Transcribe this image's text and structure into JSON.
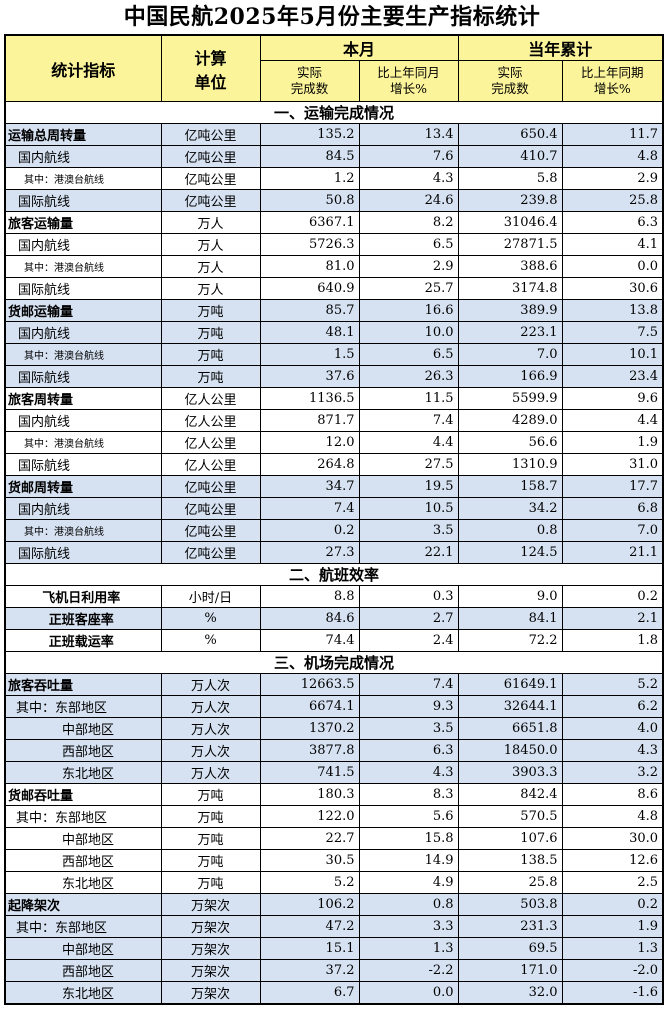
{
  "title": "中国民航2025年5月份主要生产指标统计",
  "header": {
    "indicator": "统计指标",
    "unit_line1": "计算",
    "unit_line2": "单位",
    "this_month": "本月",
    "ytd": "当年累计",
    "actual_line1": "实际",
    "actual_line2": "完成数",
    "growth_line1": "比上年同月",
    "growth_line2": "增长%",
    "actual_ytd_line1": "实际",
    "actual_ytd_line2": "完成数",
    "growth_ytd_line1": "比上年同期",
    "growth_ytd_line2": "增长%"
  },
  "sections": [
    {
      "title": "一、运输完成情况",
      "rows": [
        {
          "name": "运输总周转量",
          "level": "lv0",
          "unit": "亿吨公里",
          "m": "135.2",
          "mg": "13.4",
          "y": "650.4",
          "yg": "11.7",
          "shade": true
        },
        {
          "name": "国内航线",
          "level": "lv1",
          "unit": "亿吨公里",
          "m": "84.5",
          "mg": "7.6",
          "y": "410.7",
          "yg": "4.8",
          "shade": true
        },
        {
          "name": "其中：港澳台航线",
          "level": "lv2",
          "unit": "亿吨公里",
          "m": "1.2",
          "mg": "4.3",
          "y": "5.8",
          "yg": "2.9",
          "shade": false
        },
        {
          "name": "国际航线",
          "level": "lv1",
          "unit": "亿吨公里",
          "m": "50.8",
          "mg": "24.6",
          "y": "239.8",
          "yg": "25.8",
          "shade": true
        },
        {
          "name": "旅客运输量",
          "level": "lv0",
          "unit": "万人",
          "m": "6367.1",
          "mg": "8.2",
          "y": "31046.4",
          "yg": "6.3",
          "shade": false
        },
        {
          "name": "国内航线",
          "level": "lv1",
          "unit": "万人",
          "m": "5726.3",
          "mg": "6.5",
          "y": "27871.5",
          "yg": "4.1",
          "shade": false
        },
        {
          "name": "其中：港澳台航线",
          "level": "lv2",
          "unit": "万人",
          "m": "81.0",
          "mg": "2.9",
          "y": "388.6",
          "yg": "0.0",
          "shade": false
        },
        {
          "name": "国际航线",
          "level": "lv1",
          "unit": "万人",
          "m": "640.9",
          "mg": "25.7",
          "y": "3174.8",
          "yg": "30.6",
          "shade": false
        },
        {
          "name": "货邮运输量",
          "level": "lv0",
          "unit": "万吨",
          "m": "85.7",
          "mg": "16.6",
          "y": "389.9",
          "yg": "13.8",
          "shade": true
        },
        {
          "name": "国内航线",
          "level": "lv1",
          "unit": "万吨",
          "m": "48.1",
          "mg": "10.0",
          "y": "223.1",
          "yg": "7.5",
          "shade": true
        },
        {
          "name": "其中：港澳台航线",
          "level": "lv2",
          "unit": "万吨",
          "m": "1.5",
          "mg": "6.5",
          "y": "7.0",
          "yg": "10.1",
          "shade": true
        },
        {
          "name": "国际航线",
          "level": "lv1",
          "unit": "万吨",
          "m": "37.6",
          "mg": "26.3",
          "y": "166.9",
          "yg": "23.4",
          "shade": true
        },
        {
          "name": "旅客周转量",
          "level": "lv0",
          "unit": "亿人公里",
          "m": "1136.5",
          "mg": "11.5",
          "y": "5599.9",
          "yg": "9.6",
          "shade": false
        },
        {
          "name": "国内航线",
          "level": "lv1",
          "unit": "亿人公里",
          "m": "871.7",
          "mg": "7.4",
          "y": "4289.0",
          "yg": "4.4",
          "shade": false
        },
        {
          "name": "其中：港澳台航线",
          "level": "lv2",
          "unit": "亿人公里",
          "m": "12.0",
          "mg": "4.4",
          "y": "56.6",
          "yg": "1.9",
          "shade": false
        },
        {
          "name": "国际航线",
          "level": "lv1",
          "unit": "亿人公里",
          "m": "264.8",
          "mg": "27.5",
          "y": "1310.9",
          "yg": "31.0",
          "shade": false
        },
        {
          "name": "货邮周转量",
          "level": "lv0",
          "unit": "亿吨公里",
          "m": "34.7",
          "mg": "19.5",
          "y": "158.7",
          "yg": "17.7",
          "shade": true
        },
        {
          "name": "国内航线",
          "level": "lv1",
          "unit": "亿吨公里",
          "m": "7.4",
          "mg": "10.5",
          "y": "34.2",
          "yg": "6.8",
          "shade": true
        },
        {
          "name": "其中：港澳台航线",
          "level": "lv2",
          "unit": "亿吨公里",
          "m": "0.2",
          "mg": "3.5",
          "y": "0.8",
          "yg": "7.0",
          "shade": true
        },
        {
          "name": "国际航线",
          "level": "lv1",
          "unit": "亿吨公里",
          "m": "27.3",
          "mg": "22.1",
          "y": "124.5",
          "yg": "21.1",
          "shade": true
        }
      ]
    },
    {
      "title": "二、航班效率",
      "rows": [
        {
          "name": "飞机日利用率",
          "level": "eff",
          "unit": "小时/日",
          "m": "8.8",
          "mg": "0.3",
          "y": "9.0",
          "yg": "0.2",
          "shade": false
        },
        {
          "name": "正班客座率",
          "level": "eff",
          "unit": "%",
          "m": "84.6",
          "mg": "2.7",
          "y": "84.1",
          "yg": "2.1",
          "shade": true
        },
        {
          "name": "正班载运率",
          "level": "eff",
          "unit": "%",
          "m": "74.4",
          "mg": "2.4",
          "y": "72.2",
          "yg": "1.8",
          "shade": false
        }
      ]
    },
    {
      "title": "三、机场完成情况",
      "rows": [
        {
          "name": "旅客吞吐量",
          "level": "lv0",
          "unit": "万人次",
          "m": "12663.5",
          "mg": "7.4",
          "y": "61649.1",
          "yg": "5.2",
          "shade": true
        },
        {
          "name": "其中：东部地区",
          "level": "lv1b",
          "unit": "万人次",
          "m": "6674.1",
          "mg": "9.3",
          "y": "32644.1",
          "yg": "6.2",
          "shade": true
        },
        {
          "name": "中部地区",
          "level": "lv2b",
          "unit": "万人次",
          "m": "1370.2",
          "mg": "3.5",
          "y": "6651.8",
          "yg": "4.0",
          "shade": true
        },
        {
          "name": "西部地区",
          "level": "lv2b",
          "unit": "万人次",
          "m": "3877.8",
          "mg": "6.3",
          "y": "18450.0",
          "yg": "4.3",
          "shade": true
        },
        {
          "name": "东北地区",
          "level": "lv2b",
          "unit": "万人次",
          "m": "741.5",
          "mg": "4.3",
          "y": "3903.3",
          "yg": "3.2",
          "shade": true
        },
        {
          "name": "货邮吞吐量",
          "level": "lv0",
          "unit": "万吨",
          "m": "180.3",
          "mg": "8.3",
          "y": "842.4",
          "yg": "8.6",
          "shade": false
        },
        {
          "name": "其中：东部地区",
          "level": "lv1b",
          "unit": "万吨",
          "m": "122.0",
          "mg": "5.6",
          "y": "570.5",
          "yg": "4.8",
          "shade": false
        },
        {
          "name": "中部地区",
          "level": "lv2b",
          "unit": "万吨",
          "m": "22.7",
          "mg": "15.8",
          "y": "107.6",
          "yg": "30.0",
          "shade": false
        },
        {
          "name": "西部地区",
          "level": "lv2b",
          "unit": "万吨",
          "m": "30.5",
          "mg": "14.9",
          "y": "138.5",
          "yg": "12.6",
          "shade": false
        },
        {
          "name": "东北地区",
          "level": "lv2b",
          "unit": "万吨",
          "m": "5.2",
          "mg": "4.9",
          "y": "25.8",
          "yg": "2.5",
          "shade": false
        },
        {
          "name": "起降架次",
          "level": "lv0",
          "unit": "万架次",
          "m": "106.2",
          "mg": "0.8",
          "y": "503.8",
          "yg": "0.2",
          "shade": true
        },
        {
          "name": "其中：东部地区",
          "level": "lv1b",
          "unit": "万架次",
          "m": "47.2",
          "mg": "3.3",
          "y": "231.3",
          "yg": "1.9",
          "shade": true
        },
        {
          "name": "中部地区",
          "level": "lv2b",
          "unit": "万架次",
          "m": "15.1",
          "mg": "1.3",
          "y": "69.5",
          "yg": "1.3",
          "shade": true
        },
        {
          "name": "西部地区",
          "level": "lv2b",
          "unit": "万架次",
          "m": "37.2",
          "mg": "-2.2",
          "y": "171.0",
          "yg": "-2.0",
          "shade": true
        },
        {
          "name": "东北地区",
          "level": "lv2b",
          "unit": "万架次",
          "m": "6.7",
          "mg": "0.0",
          "y": "32.0",
          "yg": "-1.6",
          "shade": true
        }
      ]
    }
  ]
}
